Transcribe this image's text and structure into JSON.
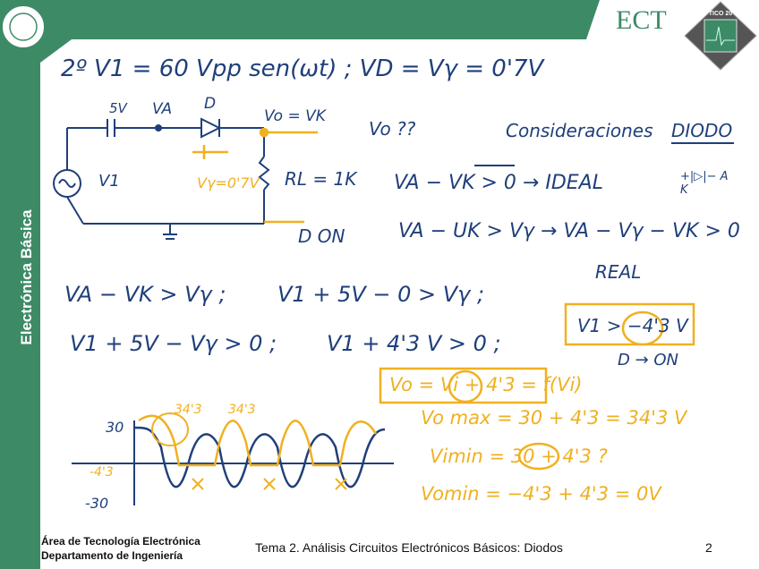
{
  "header": {
    "logo_text": "ECT",
    "chip_label": "TICO 20",
    "brand_color": "#3d8a67"
  },
  "sidebar": {
    "title": "Electrónica Básica"
  },
  "notes": {
    "title_line": "2º  V1 = 60 Vpp sen(ωt) ;   VD = Vγ =  0'7V",
    "circuit": {
      "cap": "5V",
      "va": "VA",
      "diode": "D",
      "vo": "Vo = VK",
      "source": "V1",
      "vgamma": "Vγ=0'7V",
      "rl": "RL = 1K",
      "d_on": "D  ON"
    },
    "vo_question": "Vo ??",
    "consid": "Consideraciones",
    "diodo": "DIODO",
    "ideal": "VA − VK > 0  →  IDEAL",
    "real_cond": "VA − UK > Vγ  →  VA − Vγ − VK > 0",
    "real": "REAL",
    "diode_sym": "+|▷|−  A   K",
    "eq1": "VA − VK > Vγ ;",
    "eq2": "V1 + 5V − 0 > Vγ ;",
    "eq3": "V1 + 5V − Vγ > 0 ;",
    "eq4": "V1 + 4'3 V > 0 ;",
    "box1": "V1 > −4'3 V",
    "d_on2": "D → ON",
    "box2": "Vo = Vi + 4'3 = f(Vi)",
    "vomax": "Vo max = 30 + 4'3  = 34'3 V",
    "vimin": "Vimin = 30 + 4'3 ?",
    "vomin": "Vomin = −4'3 + 4'3 = 0V",
    "wave": {
      "top": "30",
      "bottom": "-30",
      "offset": "-4'3",
      "peak1": "34'3",
      "peak2": "34'3"
    }
  },
  "footer": {
    "line1": "Área de Tecnología Electrónica",
    "line2": "Departamento de Ingeniería",
    "topic": "Tema 2. Análisis Circuitos Electrónicos Básicos: Diodos",
    "page": "2"
  }
}
